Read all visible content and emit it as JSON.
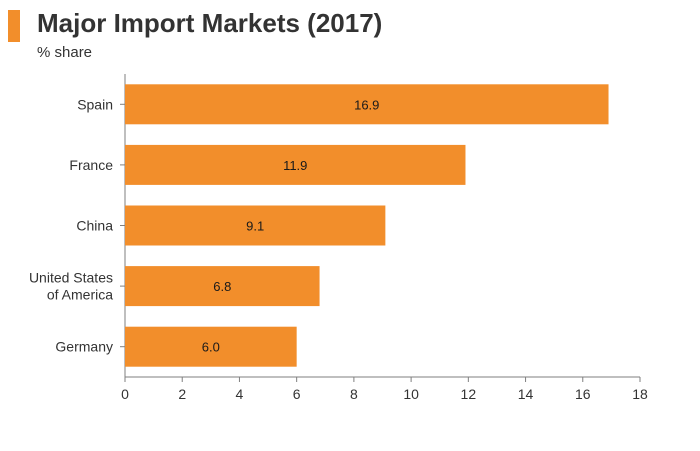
{
  "chart_data": {
    "type": "bar",
    "orientation": "horizontal",
    "title": "Major Import Markets (2017)",
    "subtitle": "% share",
    "categories": [
      [
        "Spain"
      ],
      [
        "France"
      ],
      [
        "China"
      ],
      [
        "United States",
        "of America"
      ],
      [
        "Germany"
      ]
    ],
    "values": [
      16.9,
      11.9,
      9.1,
      6.8,
      6.0
    ],
    "value_labels": [
      "16.9",
      "11.9",
      "9.1",
      "6.8",
      "6.0"
    ],
    "xlim": [
      0,
      18
    ],
    "xticks": [
      0,
      2,
      4,
      6,
      8,
      10,
      12,
      14,
      16,
      18
    ],
    "xlabel": "",
    "ylabel": "",
    "grid": false,
    "colors": {
      "bar": "#f28e2b",
      "accent": "#f28e2b",
      "text": "#333333",
      "axis": "#7f7f7f"
    }
  }
}
